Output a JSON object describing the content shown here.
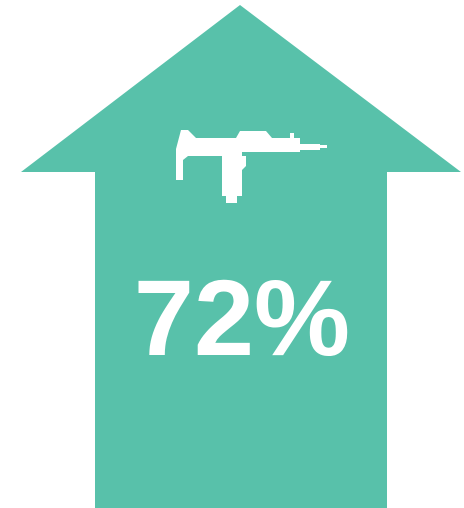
{
  "infographic": {
    "percentage": "72%",
    "icon": "submachine-gun-icon",
    "colors": {
      "arrow": "#58c1aa",
      "foreground": "#ffffff",
      "background": "#ffffff"
    }
  }
}
